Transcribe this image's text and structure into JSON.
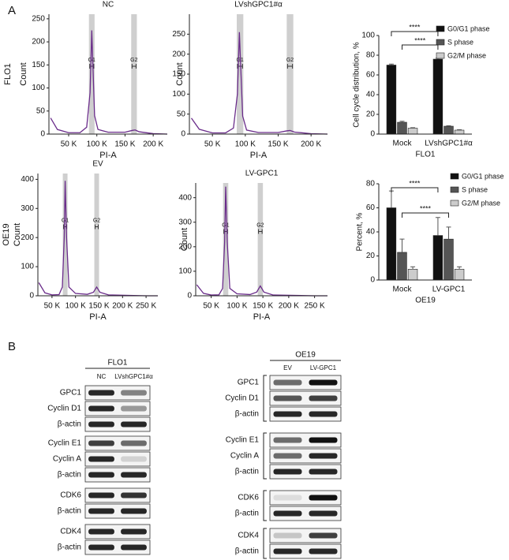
{
  "panel_labels": [
    "A",
    "B"
  ],
  "chart_data": [
    {
      "type": "line",
      "title": "NC",
      "row_label": "FLO1",
      "ylabel": "Count",
      "xlabel": "PI-A",
      "x": [
        18000,
        30000,
        50000,
        70000,
        82000,
        88000,
        91000,
        93000,
        96000,
        102000,
        120000,
        150000,
        163000,
        168000,
        175000,
        200000,
        225000
      ],
      "series": [
        {
          "color": "#6a2c8a",
          "values": [
            35,
            10,
            3,
            3,
            15,
            90,
            225,
            150,
            40,
            10,
            4,
            4,
            8,
            9,
            5,
            1,
            0
          ]
        }
      ],
      "xlim": [
        15000,
        225000
      ],
      "xticks": [
        {
          "value": 50000,
          "label": "50 K"
        },
        {
          "value": 100000,
          "label": "100 K"
        },
        {
          "value": 150000,
          "label": "150 K"
        },
        {
          "value": 200000,
          "label": "200 K"
        }
      ],
      "ylim": [
        0,
        260
      ],
      "yticks": [
        0,
        50,
        100,
        150,
        200,
        250
      ],
      "gates": [
        {
          "label": "G1",
          "range": [
            86000,
            96000
          ]
        },
        {
          "label": "G2",
          "range": [
            161000,
            171000
          ]
        }
      ]
    },
    {
      "type": "line",
      "title": "LVshGPC1#α",
      "ylabel": "Count",
      "xlabel": "PI-A",
      "x": [
        18000,
        30000,
        50000,
        70000,
        82000,
        88000,
        91000,
        93000,
        96000,
        102000,
        120000,
        150000,
        163000,
        168000,
        175000,
        200000,
        225000
      ],
      "series": [
        {
          "color": "#6a2c8a",
          "values": [
            40,
            12,
            3,
            3,
            15,
            100,
            255,
            170,
            45,
            10,
            4,
            4,
            8,
            9,
            5,
            1,
            0
          ]
        }
      ],
      "xlim": [
        15000,
        225000
      ],
      "xticks": [
        {
          "value": 50000,
          "label": "50 K"
        },
        {
          "value": 100000,
          "label": "100 K"
        },
        {
          "value": 150000,
          "label": "150 K"
        },
        {
          "value": 200000,
          "label": "200 K"
        }
      ],
      "ylim": [
        0,
        300
      ],
      "yticks": [
        0,
        50,
        100,
        150,
        200,
        250
      ],
      "gates": [
        {
          "label": "G1",
          "range": [
            87000,
            97000
          ]
        },
        {
          "label": "G2",
          "range": [
            163000,
            173000
          ]
        }
      ]
    },
    {
      "type": "line",
      "title": "EV",
      "row_label": "OE19",
      "ylabel": "Count",
      "xlabel": "PI-A",
      "x": [
        22000,
        35000,
        50000,
        65000,
        72000,
        76000,
        78000,
        81000,
        86000,
        100000,
        125000,
        138000,
        145000,
        152000,
        170000,
        250000,
        275000
      ],
      "series": [
        {
          "color": "#6a2c8a",
          "values": [
            45,
            10,
            3,
            4,
            30,
            200,
            395,
            200,
            30,
            8,
            5,
            12,
            30,
            12,
            3,
            0,
            0
          ]
        }
      ],
      "xlim": [
        20000,
        275000
      ],
      "xticks": [
        {
          "value": 50000,
          "label": "50 K"
        },
        {
          "value": 100000,
          "label": "100 K"
        },
        {
          "value": 150000,
          "label": "150 K"
        },
        {
          "value": 200000,
          "label": "200 K"
        },
        {
          "value": 250000,
          "label": "250 K"
        }
      ],
      "ylim": [
        0,
        420
      ],
      "yticks": [
        0,
        100,
        200,
        300,
        400
      ],
      "gates": [
        {
          "label": "G1",
          "range": [
            73000,
            83000
          ]
        },
        {
          "label": "G2",
          "range": [
            140000,
            150000
          ]
        }
      ]
    },
    {
      "type": "line",
      "title": "LV-GPC1",
      "ylabel": "Count",
      "xlabel": "PI-A",
      "x": [
        22000,
        35000,
        50000,
        65000,
        72000,
        76000,
        78000,
        81000,
        86000,
        100000,
        125000,
        138000,
        145000,
        152000,
        170000,
        250000,
        275000
      ],
      "series": [
        {
          "color": "#6a2c8a",
          "values": [
            45,
            10,
            3,
            4,
            30,
            220,
            445,
            220,
            30,
            8,
            5,
            15,
            40,
            15,
            3,
            0,
            0
          ]
        }
      ],
      "xlim": [
        20000,
        275000
      ],
      "xticks": [
        {
          "value": 50000,
          "label": "50 K"
        },
        {
          "value": 100000,
          "label": "100 K"
        },
        {
          "value": 150000,
          "label": "150 K"
        },
        {
          "value": 200000,
          "label": "200 K"
        },
        {
          "value": 250000,
          "label": "250 K"
        }
      ],
      "ylim": [
        0,
        460
      ],
      "yticks": [
        0,
        100,
        200,
        300,
        400
      ],
      "gates": [
        {
          "label": "G1",
          "range": [
            73000,
            83000
          ]
        },
        {
          "label": "G2",
          "range": [
            140000,
            150000
          ]
        }
      ]
    },
    {
      "type": "bar",
      "ylabel": "Cell cycle distribution, %",
      "xlabel": "FLO1",
      "categories": [
        "Mock",
        "LVshGPC1#α"
      ],
      "series": [
        {
          "name": "G0/G1 phase",
          "color": "#111111",
          "values": [
            70,
            76
          ],
          "errors": [
            1,
            1
          ]
        },
        {
          "name": "S phase",
          "color": "#555555",
          "values": [
            12,
            8
          ],
          "errors": [
            1,
            0.5
          ]
        },
        {
          "name": "G2/M phase",
          "color": "#cccccc",
          "values": [
            6,
            4
          ],
          "errors": [
            0.5,
            0.5
          ]
        }
      ],
      "ylim": [
        0,
        100
      ],
      "yticks": [
        0,
        20,
        40,
        60,
        80,
        100
      ],
      "annotations": [
        "****",
        "****"
      ]
    },
    {
      "type": "bar",
      "ylabel": "Percent, %",
      "xlabel": "OE19",
      "categories": [
        "Mock",
        "LV-GPC1"
      ],
      "series": [
        {
          "name": "G0/G1 phase",
          "color": "#111111",
          "values": [
            60,
            37
          ],
          "errors": [
            14,
            15
          ]
        },
        {
          "name": "S phase",
          "color": "#555555",
          "values": [
            23,
            34
          ],
          "errors": [
            11,
            10
          ]
        },
        {
          "name": "G2/M phase",
          "color": "#cccccc",
          "values": [
            9,
            9
          ],
          "errors": [
            2,
            2
          ]
        }
      ],
      "ylim": [
        0,
        80
      ],
      "yticks": [
        0,
        20,
        40,
        60,
        80
      ],
      "annotations": [
        "****",
        "****"
      ]
    }
  ],
  "blots": [
    {
      "header": "FLO1",
      "lanes": [
        "NC",
        "LVshGPC1#α"
      ],
      "groups": [
        [
          "GPC1",
          "Cyclin D1",
          "β-actin"
        ],
        [
          "Cyclin E1",
          "Cyclin A",
          "β-actin"
        ],
        [
          "CDK6",
          "β-actin"
        ],
        [
          "CDK4",
          "β-actin"
        ]
      ]
    },
    {
      "header": "OE19",
      "lanes": [
        "EV",
        "LV-GPC1"
      ],
      "groups": [
        [
          "GPC1",
          "Cyclin D1",
          "β-actin"
        ],
        [
          "Cyclin E1",
          "Cyclin A",
          "β-actin"
        ],
        [
          "CDK6",
          "β-actin"
        ],
        [
          "CDK4",
          "β-actin"
        ]
      ]
    }
  ]
}
